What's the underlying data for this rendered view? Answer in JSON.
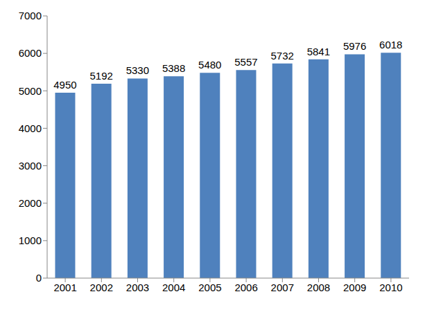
{
  "chart_data": {
    "type": "bar",
    "categories": [
      "2001",
      "2002",
      "2003",
      "2004",
      "2005",
      "2006",
      "2007",
      "2008",
      "2009",
      "2010"
    ],
    "values": [
      4950,
      5192,
      5330,
      5388,
      5480,
      5557,
      5732,
      5841,
      5976,
      6018
    ],
    "color": "#4f81bd",
    "ylim": [
      0,
      7000
    ],
    "yticks": [
      0,
      1000,
      2000,
      3000,
      4000,
      5000,
      6000,
      7000
    ],
    "grid": false,
    "data_labels": true
  }
}
